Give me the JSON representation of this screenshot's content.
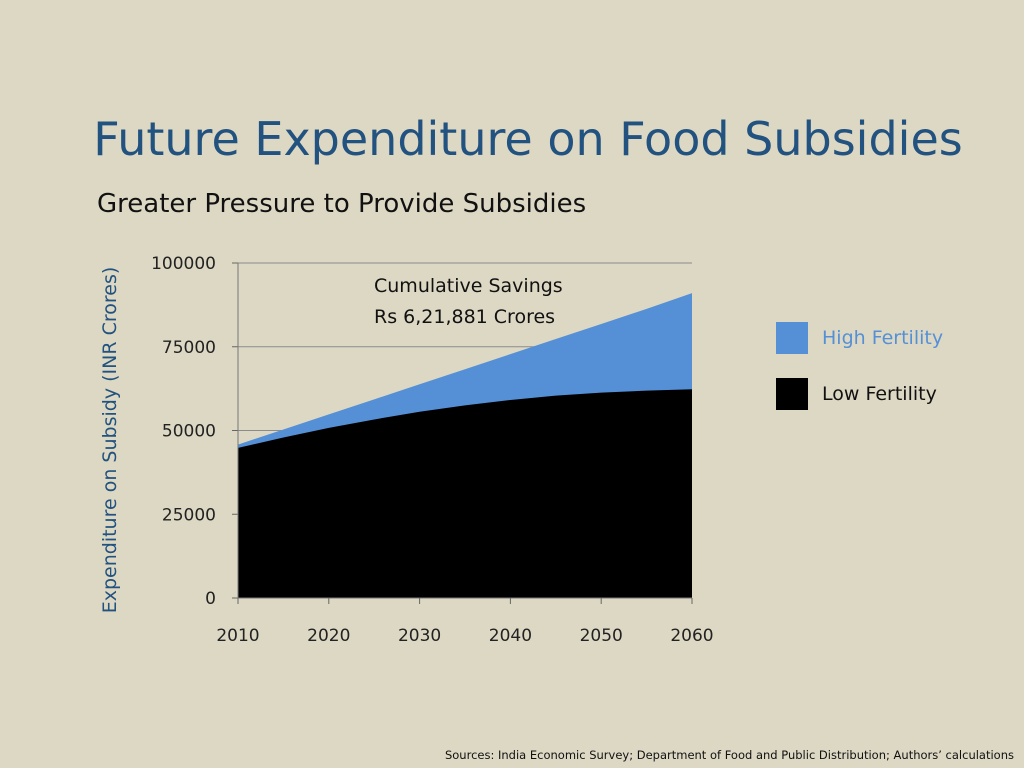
{
  "slide": {
    "title": "Future Expenditure on Food Subsidies",
    "subtitle": "Greater Pressure to Provide Subsidies",
    "source": "Sources: India Economic Survey; Department of Food and Public Distribution; Authors’ calculations"
  },
  "chart_data": {
    "type": "area",
    "ylabel": "Expenditure on Subsidy (INR Crores)",
    "xlabel": "",
    "x": [
      2010,
      2015,
      2020,
      2025,
      2030,
      2035,
      2040,
      2045,
      2050,
      2055,
      2060
    ],
    "xticks": [
      "2010",
      "2020",
      "2030",
      "2040",
      "2050",
      "2060"
    ],
    "yticks": [
      "0",
      "25000",
      "50000",
      "75000",
      "100000"
    ],
    "ylim": [
      0,
      100000
    ],
    "grid": "horizontal",
    "series": [
      {
        "name": "High Fertility",
        "color": "#5590d6",
        "values": [
          45800,
          50300,
          54800,
          59300,
          63800,
          68300,
          72800,
          77300,
          81800,
          86300,
          91000
        ]
      },
      {
        "name": "Low Fertility",
        "color": "#000000",
        "values": [
          44800,
          47900,
          50800,
          53300,
          55600,
          57500,
          59100,
          60400,
          61300,
          61900,
          62300
        ]
      }
    ],
    "annotation": [
      "Cumulative Savings",
      "Rs 6,21,881 Crores"
    ],
    "legend_position": "right"
  }
}
